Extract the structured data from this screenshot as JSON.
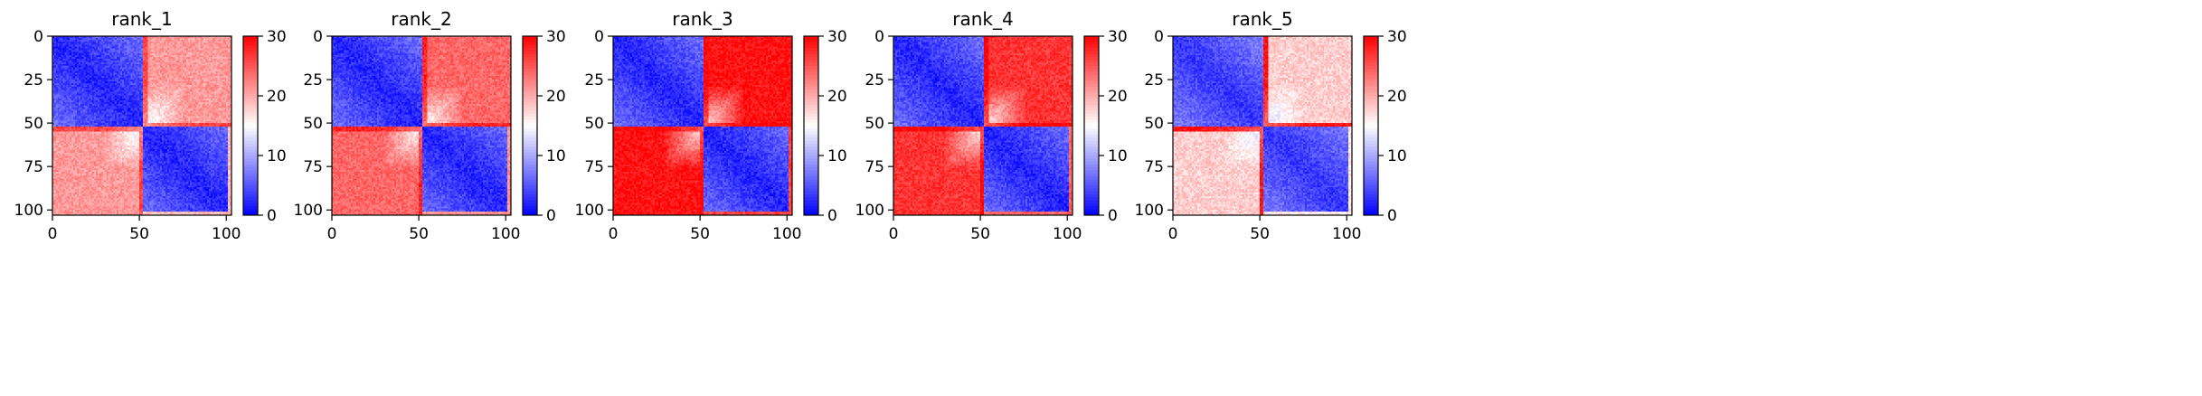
{
  "chart_data": [
    {
      "type": "heatmap",
      "title": "rank_1",
      "x_ticks": [
        "0",
        "50",
        "100"
      ],
      "y_ticks": [
        "0",
        "25",
        "50",
        "75",
        "100"
      ],
      "x_range": [
        0,
        103
      ],
      "y_range": [
        0,
        103
      ],
      "colorbar": {
        "min": 0,
        "max": 30,
        "ticks": [
          "0",
          "10",
          "20",
          "30"
        ],
        "colormap": "bwr"
      },
      "matrix_model": {
        "size": 103,
        "split_index": 52,
        "block_value": 2,
        "cross_block_value": 21,
        "strong_band_value": 26
      }
    },
    {
      "type": "heatmap",
      "title": "rank_2",
      "x_ticks": [
        "0",
        "50",
        "100"
      ],
      "y_ticks": [
        "0",
        "25",
        "50",
        "75",
        "100"
      ],
      "x_range": [
        0,
        103
      ],
      "y_range": [
        0,
        103
      ],
      "colorbar": {
        "min": 0,
        "max": 30,
        "ticks": [
          "0",
          "10",
          "20",
          "30"
        ],
        "colormap": "bwr"
      },
      "matrix_model": {
        "size": 103,
        "split_index": 52,
        "block_value": 2,
        "cross_block_value": 24,
        "strong_band_value": 28
      }
    },
    {
      "type": "heatmap",
      "title": "rank_3",
      "x_ticks": [
        "0",
        "50",
        "100"
      ],
      "y_ticks": [
        "0",
        "25",
        "50",
        "75",
        "100"
      ],
      "x_range": [
        0,
        103
      ],
      "y_range": [
        0,
        103
      ],
      "colorbar": {
        "min": 0,
        "max": 30,
        "ticks": [
          "0",
          "10",
          "20",
          "30"
        ],
        "colormap": "bwr"
      },
      "matrix_model": {
        "size": 103,
        "split_index": 52,
        "block_value": 2,
        "cross_block_value": 29,
        "strong_band_value": 30
      }
    },
    {
      "type": "heatmap",
      "title": "rank_4",
      "x_ticks": [
        "0",
        "50",
        "100"
      ],
      "y_ticks": [
        "0",
        "25",
        "50",
        "75",
        "100"
      ],
      "x_range": [
        0,
        103
      ],
      "y_range": [
        0,
        103
      ],
      "colorbar": {
        "min": 0,
        "max": 30,
        "ticks": [
          "0",
          "10",
          "20",
          "30"
        ],
        "colormap": "bwr"
      },
      "matrix_model": {
        "size": 103,
        "split_index": 52,
        "block_value": 2,
        "cross_block_value": 27,
        "strong_band_value": 30
      }
    },
    {
      "type": "heatmap",
      "title": "rank_5",
      "x_ticks": [
        "0",
        "50",
        "100"
      ],
      "y_ticks": [
        "0",
        "25",
        "50",
        "75",
        "100"
      ],
      "x_range": [
        0,
        103
      ],
      "y_range": [
        0,
        103
      ],
      "colorbar": {
        "min": 0,
        "max": 30,
        "ticks": [
          "0",
          "10",
          "20",
          "30"
        ],
        "colormap": "bwr"
      },
      "matrix_model": {
        "size": 103,
        "split_index": 52,
        "block_value": 3,
        "cross_block_value": 18,
        "strong_band_value": 29
      }
    }
  ],
  "colors": {
    "low": "#0000ff",
    "mid": "#ffffff",
    "high": "#ff0000",
    "axis": "#000000"
  }
}
